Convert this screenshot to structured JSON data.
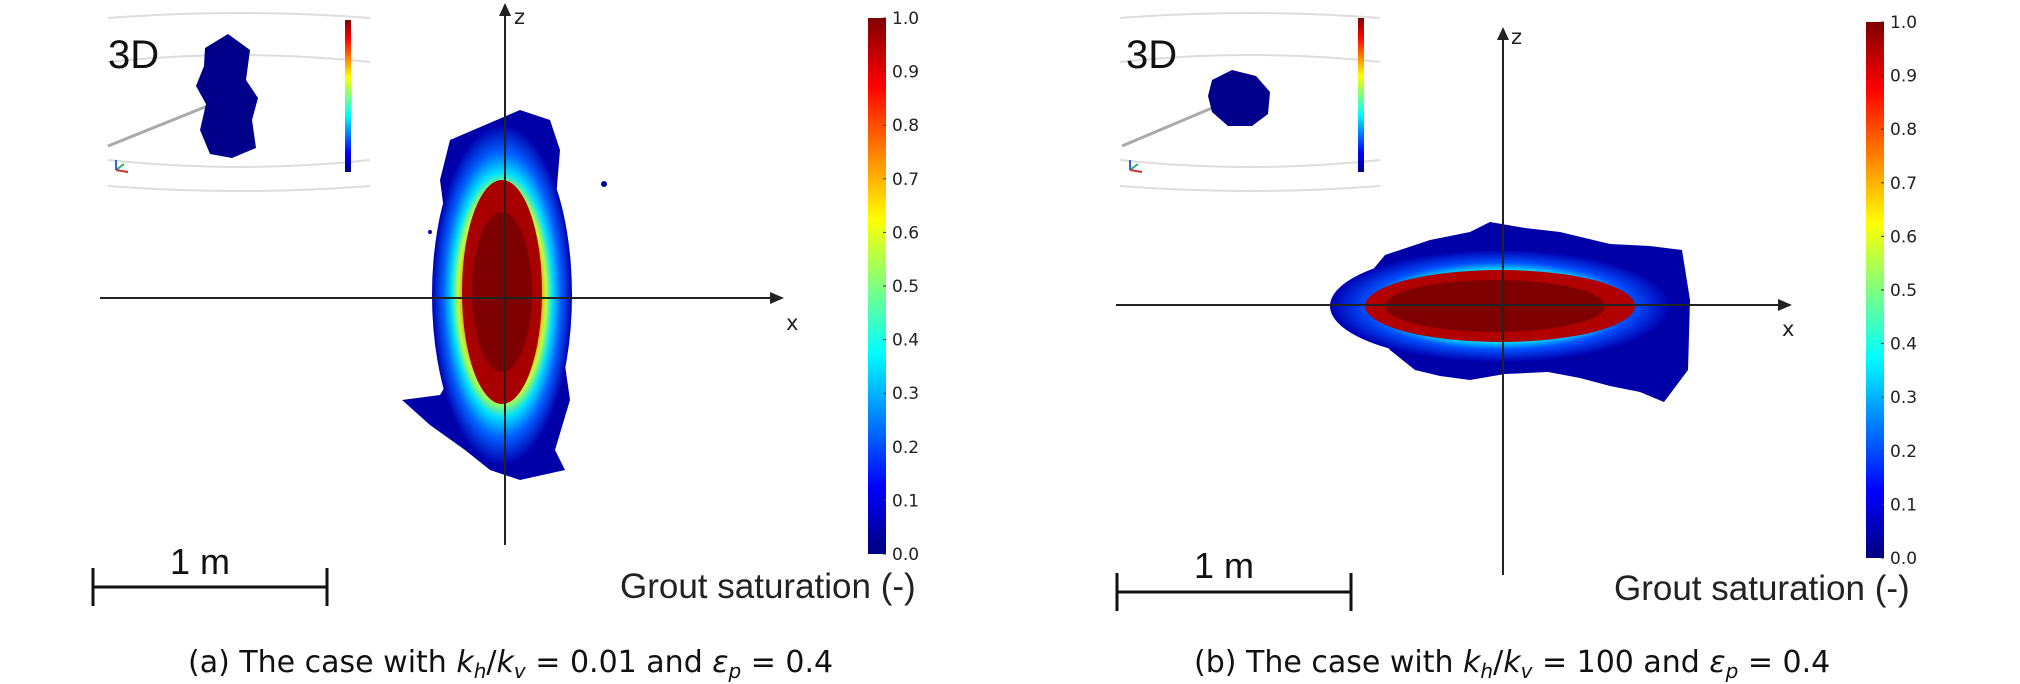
{
  "panels": [
    {
      "inset_label": "3D",
      "axis_z": "z",
      "axis_x": "x",
      "scale_label": "1 m",
      "colorbar_title": "Grout saturation (-)",
      "caption": {
        "prefix": "(a) The case with ",
        "k_h": "k",
        "k_h_sub": "h",
        "slash": "/",
        "k_v": "k",
        "k_v_sub": "v",
        "eq1": " = 0.01 and ",
        "eps": "ε",
        "eps_sub": "p",
        "eq2": " = 0.4"
      }
    },
    {
      "inset_label": "3D",
      "axis_z": "z",
      "axis_x": "x",
      "scale_label": "1 m",
      "colorbar_title": "Grout saturation (-)",
      "caption": {
        "prefix": "(b) The case with ",
        "k_h": "k",
        "k_h_sub": "h",
        "slash": "/",
        "k_v": "k",
        "k_v_sub": "v",
        "eq1": " = 100 and ",
        "eps": "ε",
        "eps_sub": "p",
        "eq2": " = 0.4"
      }
    }
  ],
  "colorbar": {
    "ticks": [
      "1.0",
      "0.9",
      "0.8",
      "0.7",
      "0.6",
      "0.5",
      "0.4",
      "0.3",
      "0.2",
      "0.1",
      "0.0"
    ],
    "colors": [
      "#00007f",
      "#0000ff",
      "#007fff",
      "#00ffff",
      "#7fff7f",
      "#ffff00",
      "#ff7f00",
      "#ff0000",
      "#7f0000"
    ]
  }
}
